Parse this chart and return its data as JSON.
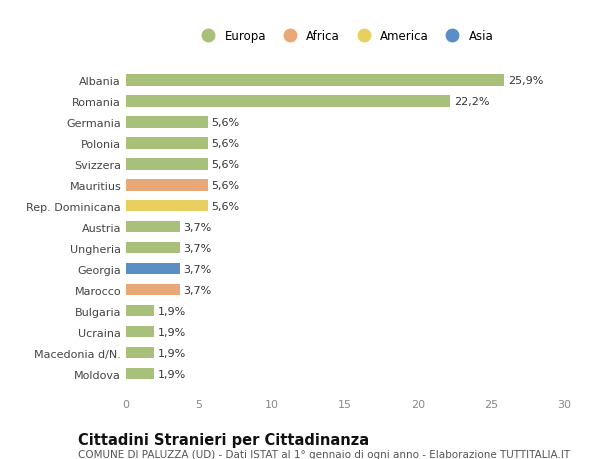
{
  "title": "Cittadini Stranieri per Cittadinanza",
  "subtitle": "COMUNE DI PALUZZA (UD) - Dati ISTAT al 1° gennaio di ogni anno - Elaborazione TUTTITALIA.IT",
  "categories": [
    "Albania",
    "Romania",
    "Germania",
    "Polonia",
    "Svizzera",
    "Mauritius",
    "Rep. Dominicana",
    "Austria",
    "Ungheria",
    "Georgia",
    "Marocco",
    "Bulgaria",
    "Ucraina",
    "Macedonia d/N.",
    "Moldova"
  ],
  "values": [
    25.9,
    22.2,
    5.6,
    5.6,
    5.6,
    5.6,
    5.6,
    3.7,
    3.7,
    3.7,
    3.7,
    1.9,
    1.9,
    1.9,
    1.9
  ],
  "continents": [
    "Europa",
    "Europa",
    "Europa",
    "Europa",
    "Europa",
    "Africa",
    "America",
    "Europa",
    "Europa",
    "Asia",
    "Africa",
    "Europa",
    "Europa",
    "Europa",
    "Europa"
  ],
  "colors": {
    "Europa": "#a8c07a",
    "Africa": "#e8a878",
    "America": "#e8d060",
    "Asia": "#5b8ec4"
  },
  "legend_labels": [
    "Europa",
    "Africa",
    "America",
    "Asia"
  ],
  "xlim": [
    0,
    30
  ],
  "xticks": [
    0,
    5,
    10,
    15,
    20,
    25,
    30
  ],
  "bar_height": 0.55,
  "background_color": "#ffffff",
  "label_fontsize": 8.0,
  "tick_fontsize": 8.0,
  "title_fontsize": 10.5,
  "subtitle_fontsize": 7.5,
  "legend_fontsize": 8.5
}
